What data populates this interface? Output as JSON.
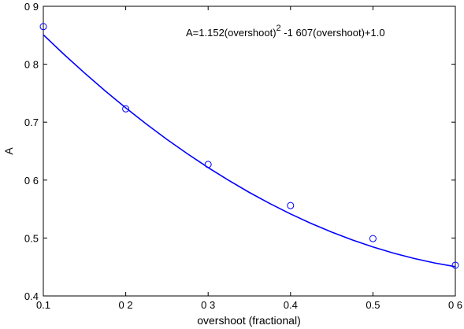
{
  "chart_data": {
    "type": "scatter",
    "xlabel": "overshoot (fractional)",
    "ylabel": "A",
    "xlim": [
      0.1,
      0.6
    ],
    "ylim": [
      0.4,
      0.9
    ],
    "x_tick_labels": [
      "0.1",
      "0 2",
      "0 3",
      "0.4",
      "0.5",
      "0 6"
    ],
    "x_tick_values": [
      0.1,
      0.2,
      0.3,
      0.4,
      0.5,
      0.6
    ],
    "y_tick_labels": [
      "0.4",
      "0.5",
      "0 6",
      "0.7",
      "0 8",
      "0 9"
    ],
    "y_tick_values": [
      0.4,
      0.5,
      0.6,
      0.7,
      0.8,
      0.9
    ],
    "grid": false,
    "annotation": {
      "prefix": "A=1.152(overshoot)",
      "superscript": "2",
      "suffix": " -1 607(overshoot)+1.0"
    },
    "points": {
      "x": [
        0.1,
        0.2,
        0.3,
        0.4,
        0.5,
        0.6
      ],
      "y": [
        0.865,
        0.723,
        0.627,
        0.556,
        0.499,
        0.453
      ]
    },
    "fit_curve": {
      "x": [
        0.1,
        0.125,
        0.15,
        0.175,
        0.2,
        0.225,
        0.25,
        0.275,
        0.3,
        0.325,
        0.35,
        0.375,
        0.4,
        0.425,
        0.45,
        0.475,
        0.5,
        0.525,
        0.55,
        0.575,
        0.6
      ],
      "y": [
        0.8508,
        0.8171,
        0.7849,
        0.7541,
        0.7247,
        0.6968,
        0.6703,
        0.6452,
        0.6216,
        0.5994,
        0.5787,
        0.5594,
        0.5416,
        0.5251,
        0.5102,
        0.4966,
        0.4845,
        0.4739,
        0.4647,
        0.4569,
        0.4506
      ]
    },
    "colors": {
      "series": "#0000ff",
      "axes": "#000000"
    }
  }
}
